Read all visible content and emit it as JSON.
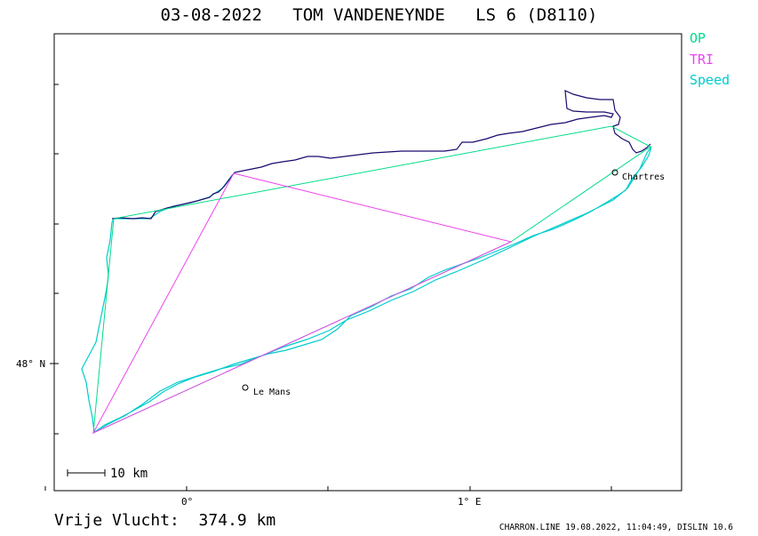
{
  "title": "03-08-2022   TOM VANDENEYNDE   LS 6 (D8110)",
  "legend": [
    {
      "label": "OP",
      "color": "#00dd88"
    },
    {
      "label": "TRI",
      "color": "#ee44ee"
    },
    {
      "label": "Speed",
      "color": "#00cccc"
    }
  ],
  "axes": {
    "y_label": "48° N",
    "x_labels": [
      "0°",
      "1° E"
    ]
  },
  "places": [
    {
      "name": "Chartres"
    },
    {
      "name": "Le Mans"
    }
  ],
  "scale_bar": "10 km",
  "footer": {
    "distance": "Vrije Vlucht:  374.9 km",
    "credit": "CHARRON.LINE 19.08.2022, 11:04:49, DISLIN 10.6"
  },
  "colors": {
    "track": "#1a0a6e",
    "op": "#00dd88",
    "tri": "#ee44ee",
    "speed": "#00cccc"
  }
}
